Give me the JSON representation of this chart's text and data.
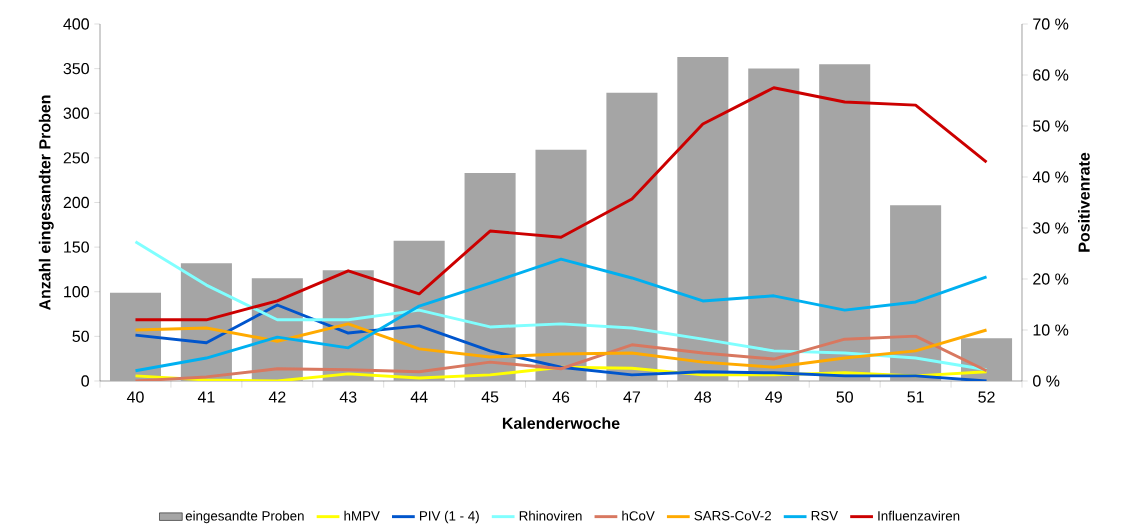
{
  "chart_data": {
    "type": "line",
    "xlabel": "Kalenderwoche",
    "ylabel": "Anzahl eingesandter Proben",
    "y2label": "Positivenrate",
    "categories": [
      "40",
      "41",
      "42",
      "43",
      "44",
      "45",
      "46",
      "47",
      "48",
      "49",
      "50",
      "51",
      "52"
    ],
    "series": [
      {
        "name": "eingesandte Proben",
        "type": "bar",
        "color": "#a5a5a5",
        "values": [
          99,
          132,
          115,
          124,
          157,
          233,
          259,
          323,
          363,
          350,
          355,
          197,
          48
        ]
      },
      {
        "name": "hMPV",
        "axis": "y2",
        "color": "#ffff00",
        "values": [
          1.0,
          0.2,
          0,
          1.4,
          0.6,
          1.2,
          2.7,
          2.5,
          1.2,
          1.2,
          1.6,
          1.0,
          1.8
        ]
      },
      {
        "name": "PIV (1 - 4)",
        "axis": "y2",
        "color": "#0055cc",
        "values": [
          9.0,
          7.5,
          14.9,
          9.4,
          10.8,
          5.9,
          2.7,
          1.2,
          1.8,
          1.6,
          1.0,
          1.0,
          0
        ]
      },
      {
        "name": "Rhinoviren",
        "axis": "y2",
        "color": "#80ffff",
        "values": [
          27.3,
          18.8,
          12.0,
          12.0,
          13.9,
          10.6,
          11.2,
          10.4,
          8.2,
          5.9,
          5.5,
          4.5,
          2.2
        ]
      },
      {
        "name": "hCoV",
        "axis": "y2",
        "color": "#d87860",
        "values": [
          0,
          0.8,
          2.4,
          2.2,
          1.8,
          3.7,
          2.4,
          7.1,
          5.5,
          4.3,
          8.2,
          8.8,
          2.0
        ]
      },
      {
        "name": "SARS-CoV-2",
        "axis": "y2",
        "color": "#ffaa00",
        "values": [
          10.0,
          10.4,
          7.8,
          11.2,
          6.3,
          4.7,
          5.3,
          5.5,
          3.7,
          2.7,
          4.5,
          5.9,
          10.0
        ]
      },
      {
        "name": "RSV",
        "axis": "y2",
        "color": "#00b0f0",
        "values": [
          2.0,
          4.5,
          8.6,
          6.5,
          14.7,
          19.2,
          23.9,
          20.2,
          15.7,
          16.7,
          13.9,
          15.5,
          20.4
        ]
      },
      {
        "name": "Influenzaviren",
        "axis": "y2",
        "color": "#cc0000",
        "values": [
          12.0,
          12.0,
          15.7,
          21.6,
          17.1,
          29.4,
          28.2,
          35.7,
          50.4,
          57.5,
          54.7,
          54.1,
          42.9
        ]
      }
    ],
    "ylim": [
      0,
      400
    ],
    "yticks": [
      0,
      50,
      100,
      150,
      200,
      250,
      300,
      350,
      400
    ],
    "y2lim": [
      0,
      70
    ],
    "y2ticks": [
      {
        "value": 0,
        "label": "0 %"
      },
      {
        "value": 10,
        "label": "10 %"
      },
      {
        "value": 20,
        "label": "20 %"
      },
      {
        "value": 30,
        "label": "30 %"
      },
      {
        "value": 40,
        "label": "40 %"
      },
      {
        "value": 50,
        "label": "50 %"
      },
      {
        "value": 60,
        "label": "60 %"
      },
      {
        "value": 70,
        "label": "70 %"
      }
    ],
    "legend": "bottom",
    "grid": false,
    "marker": "none",
    "line_style": "solid"
  }
}
